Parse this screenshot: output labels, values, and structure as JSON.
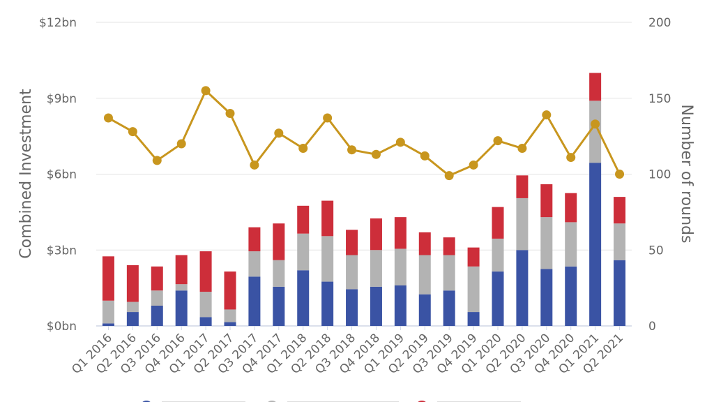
{
  "chart_data": {
    "type": "bar",
    "stacked": true,
    "categories": [
      "Q1 2016",
      "Q2 2016",
      "Q3 2016",
      "Q4 2016",
      "Q1 2017",
      "Q2 2017",
      "Q3 2017",
      "Q4 2017",
      "Q1 2018",
      "Q2 2018",
      "Q3 2018",
      "Q4 2018",
      "Q1 2019",
      "Q2 2019",
      "Q3 2019",
      "Q4 2019",
      "Q1 2020",
      "Q2 2020",
      "Q3 2020",
      "Q4 2020",
      "Q1 2021",
      "Q2 2021"
    ],
    "series": [
      {
        "name": "Series A (blue)",
        "color": "#3a53a4",
        "axis": "left",
        "values": [
          0.1,
          0.55,
          0.8,
          1.4,
          0.35,
          0.15,
          1.95,
          1.55,
          2.2,
          1.75,
          1.45,
          1.55,
          1.6,
          1.25,
          1.4,
          0.55,
          2.15,
          3.0,
          2.25,
          2.35,
          6.45,
          2.6
        ]
      },
      {
        "name": "Series B (grey)",
        "color": "#b3b3b3",
        "axis": "left",
        "values": [
          0.9,
          0.4,
          0.6,
          0.25,
          1.0,
          0.5,
          1.0,
          1.05,
          1.45,
          1.8,
          1.35,
          1.45,
          1.45,
          1.55,
          1.4,
          1.8,
          1.3,
          2.05,
          2.05,
          1.75,
          2.45,
          1.45
        ]
      },
      {
        "name": "Series C (red)",
        "color": "#cd2e3a",
        "axis": "left",
        "values": [
          1.75,
          1.45,
          0.95,
          1.15,
          1.6,
          1.5,
          0.95,
          1.45,
          1.1,
          1.4,
          1.0,
          1.25,
          1.25,
          0.9,
          0.7,
          0.75,
          1.25,
          0.9,
          1.3,
          1.15,
          1.1,
          1.05
        ]
      },
      {
        "name": "Number of rounds",
        "type": "line",
        "color": "#c8961e",
        "axis": "right",
        "values": [
          137,
          128,
          109,
          120,
          155,
          140,
          106,
          127,
          117,
          137,
          116,
          113,
          121,
          112,
          99,
          106,
          122,
          117,
          139,
          111,
          133,
          100
        ]
      }
    ],
    "y_left": {
      "label": "Combined Investment",
      "ylim": [
        0,
        12
      ],
      "ticks": [
        "$0bn",
        "$3bn",
        "$6bn",
        "$9bn",
        "$12bn"
      ]
    },
    "y_right": {
      "label": "Number of rounds",
      "ylim": [
        0,
        200
      ],
      "ticks": [
        "0",
        "50",
        "100",
        "150",
        "200"
      ]
    },
    "grid": true,
    "legend": "bottom"
  }
}
